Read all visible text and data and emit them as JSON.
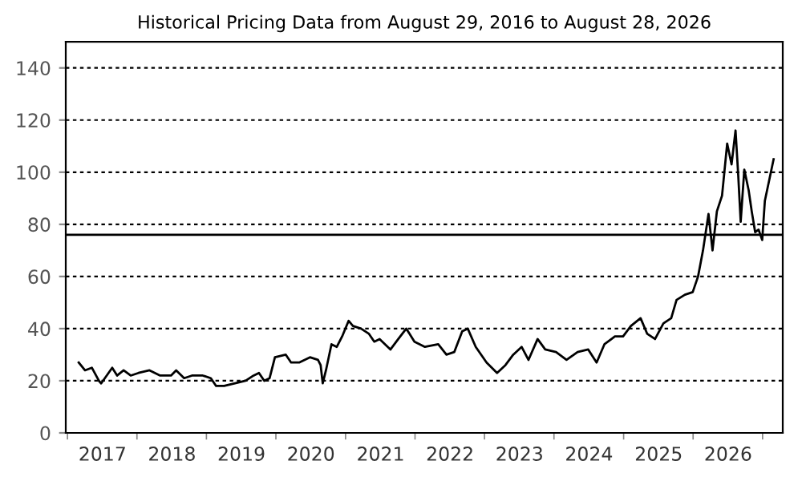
{
  "chart_data": {
    "type": "line",
    "title": "Historical Pricing Data from August 29, 2016 to August 28, 2026",
    "x": [
      "2016-08-29",
      "2016-10-01",
      "2016-11-06",
      "2016-12-13",
      "2016-12-25",
      "2017-01-23",
      "2017-02-21",
      "2017-03-19",
      "2017-04-22",
      "2017-05-29",
      "2017-07-09",
      "2017-09-05",
      "2017-10-31",
      "2017-12-27",
      "2018-01-23",
      "2018-03-06",
      "2018-04-16",
      "2018-06-12",
      "2018-07-24",
      "2018-08-21",
      "2018-10-02",
      "2018-11-28",
      "2019-01-23",
      "2019-03-06",
      "2019-04-03",
      "2019-05-01",
      "2019-05-29",
      "2019-06-26",
      "2019-08-22",
      "2019-09-19",
      "2019-10-31",
      "2019-12-27",
      "2020-02-07",
      "2020-02-21",
      "2020-03-03",
      "2020-03-20",
      "2020-04-18",
      "2020-05-16",
      "2020-06-13",
      "2020-07-17",
      "2020-08-09",
      "2020-09-20",
      "2020-11-01",
      "2020-11-29",
      "2020-12-27",
      "2021-02-22",
      "2021-04-04",
      "2021-05-16",
      "2021-06-28",
      "2021-08-22",
      "2021-10-31",
      "2021-12-13",
      "2022-01-23",
      "2022-03-06",
      "2022-04-04",
      "2022-05-16",
      "2022-07-12",
      "2022-09-05",
      "2022-10-19",
      "2022-11-29",
      "2023-01-12",
      "2023-02-17",
      "2023-04-06",
      "2023-05-16",
      "2023-07-12",
      "2023-09-05",
      "2023-11-02",
      "2023-12-28",
      "2024-02-10",
      "2024-03-22",
      "2024-05-16",
      "2024-06-28",
      "2024-08-08",
      "2024-09-28",
      "2024-11-02",
      "2024-12-13",
      "2025-01-26",
      "2025-03-08",
      "2025-04-05",
      "2025-05-19",
      "2025-06-29",
      "2025-07-27",
      "2025-08-22",
      "2025-09-20",
      "2025-10-11",
      "2025-11-03",
      "2025-11-30",
      "2025-12-27",
      "2026-01-19",
      "2026-02-09",
      "2026-02-23",
      "2026-03-08",
      "2026-03-27",
      "2026-04-19",
      "2026-05-05",
      "2026-05-23",
      "2026-06-10",
      "2026-06-29",
      "2026-07-13",
      "2026-08-28"
    ],
    "series": [
      {
        "color": "#000000",
        "values": [
          27,
          24,
          25,
          20,
          19,
          22,
          25,
          22,
          24,
          22,
          23,
          24,
          22,
          22,
          24,
          21,
          22,
          22,
          21,
          18,
          18,
          19,
          20,
          22,
          23,
          20,
          21,
          29,
          30,
          27,
          27,
          29,
          28,
          26,
          19,
          24,
          34,
          33,
          37,
          43,
          41,
          40,
          38,
          35,
          36,
          32,
          36,
          40,
          35,
          33,
          34,
          30,
          31,
          39,
          40,
          33,
          27,
          23,
          26,
          30,
          33,
          28,
          36,
          32,
          31,
          28,
          31,
          32,
          27,
          34,
          37,
          37,
          41,
          44,
          38,
          36,
          42,
          44,
          51,
          53,
          54,
          60,
          70,
          84,
          70,
          85,
          91,
          111,
          103,
          116,
          99,
          81,
          101,
          93,
          85,
          77,
          78,
          74,
          89,
          105
        ]
      }
    ],
    "xlim": [
      "2016-06-22",
      "2026-10-15"
    ],
    "xticks": [
      {
        "value": "2016-07-01",
        "label": null
      },
      {
        "value": "2017-01-01",
        "label": "2017"
      },
      {
        "value": "2017-07-01",
        "label": null
      },
      {
        "value": "2018-01-01",
        "label": "2018"
      },
      {
        "value": "2018-07-01",
        "label": null
      },
      {
        "value": "2019-01-01",
        "label": "2019"
      },
      {
        "value": "2019-07-01",
        "label": null
      },
      {
        "value": "2020-01-01",
        "label": "2020"
      },
      {
        "value": "2020-07-01",
        "label": null
      },
      {
        "value": "2021-01-01",
        "label": "2021"
      },
      {
        "value": "2021-07-01",
        "label": null
      },
      {
        "value": "2022-01-01",
        "label": "2022"
      },
      {
        "value": "2022-07-01",
        "label": null
      },
      {
        "value": "2023-01-01",
        "label": "2023"
      },
      {
        "value": "2023-07-01",
        "label": null
      },
      {
        "value": "2024-01-01",
        "label": "2024"
      },
      {
        "value": "2024-07-01",
        "label": null
      },
      {
        "value": "2025-01-01",
        "label": "2025"
      },
      {
        "value": "2025-07-01",
        "label": null
      },
      {
        "value": "2026-01-01",
        "label": "2026"
      },
      {
        "value": "2026-07-01",
        "label": null
      }
    ],
    "ylim": [
      0,
      150
    ],
    "yticks": [
      0,
      20,
      40,
      60,
      80,
      100,
      120,
      140
    ],
    "grid": "y",
    "line_style": "solid",
    "marker": "none",
    "legend": false,
    "ref_lines": [
      {
        "axis": "y",
        "value": 76,
        "color": "#000000",
        "line_style": "solid"
      }
    ]
  }
}
